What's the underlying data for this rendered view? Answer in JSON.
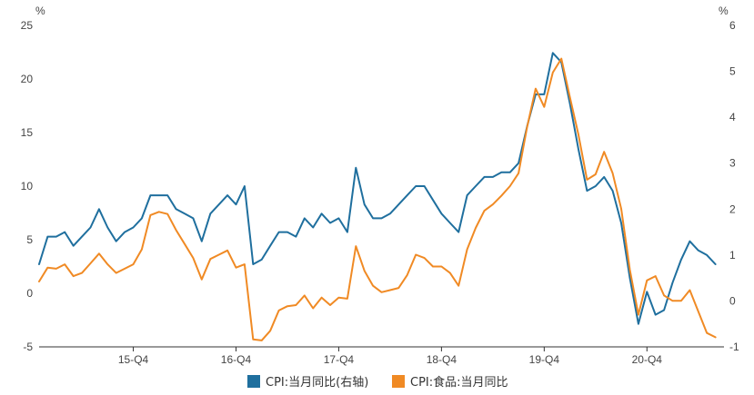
{
  "chart_data": {
    "type": "line",
    "xlabel": "",
    "y_unit_left": "%",
    "y_unit_right": "%",
    "ylim_left": [
      -5,
      25
    ],
    "ylim_right": [
      -1,
      6
    ],
    "yticks_left": [
      -5,
      0,
      5,
      10,
      15,
      20,
      25
    ],
    "yticks_right": [
      -1,
      0,
      1,
      2,
      3,
      4,
      5,
      6
    ],
    "x_start": "2015-01",
    "x_end": "2021-09",
    "x_ticks": [
      {
        "label": "15-Q4",
        "x": "2015-12"
      },
      {
        "label": "16-Q4",
        "x": "2016-12"
      },
      {
        "label": "17-Q4",
        "x": "2017-12"
      },
      {
        "label": "18-Q4",
        "x": "2018-12"
      },
      {
        "label": "19-Q4",
        "x": "2019-12"
      },
      {
        "label": "20-Q4",
        "x": "2020-12"
      }
    ],
    "legend_position": "bottom-center",
    "series": [
      {
        "name": "CPI:当月同比(右轴)",
        "axis": "right",
        "color": "#1f6f9e",
        "points": [
          [
            "2015-01",
            0.8
          ],
          [
            "2015-02",
            1.4
          ],
          [
            "2015-03",
            1.4
          ],
          [
            "2015-04",
            1.5
          ],
          [
            "2015-05",
            1.2
          ],
          [
            "2015-06",
            1.4
          ],
          [
            "2015-07",
            1.6
          ],
          [
            "2015-08",
            2.0
          ],
          [
            "2015-09",
            1.6
          ],
          [
            "2015-10",
            1.3
          ],
          [
            "2015-11",
            1.5
          ],
          [
            "2015-12",
            1.6
          ],
          [
            "2016-01",
            1.8
          ],
          [
            "2016-02",
            2.3
          ],
          [
            "2016-03",
            2.3
          ],
          [
            "2016-04",
            2.3
          ],
          [
            "2016-05",
            2.0
          ],
          [
            "2016-06",
            1.9
          ],
          [
            "2016-07",
            1.8
          ],
          [
            "2016-08",
            1.3
          ],
          [
            "2016-09",
            1.9
          ],
          [
            "2016-10",
            2.1
          ],
          [
            "2016-11",
            2.3
          ],
          [
            "2016-12",
            2.1
          ],
          [
            "2017-01",
            2.5
          ],
          [
            "2017-02",
            0.8
          ],
          [
            "2017-03",
            0.9
          ],
          [
            "2017-04",
            1.2
          ],
          [
            "2017-05",
            1.5
          ],
          [
            "2017-06",
            1.5
          ],
          [
            "2017-07",
            1.4
          ],
          [
            "2017-08",
            1.8
          ],
          [
            "2017-09",
            1.6
          ],
          [
            "2017-10",
            1.9
          ],
          [
            "2017-11",
            1.7
          ],
          [
            "2017-12",
            1.8
          ],
          [
            "2018-01",
            1.5
          ],
          [
            "2018-02",
            2.9
          ],
          [
            "2018-03",
            2.1
          ],
          [
            "2018-04",
            1.8
          ],
          [
            "2018-05",
            1.8
          ],
          [
            "2018-06",
            1.9
          ],
          [
            "2018-07",
            2.1
          ],
          [
            "2018-08",
            2.3
          ],
          [
            "2018-09",
            2.5
          ],
          [
            "2018-10",
            2.5
          ],
          [
            "2018-11",
            2.2
          ],
          [
            "2018-12",
            1.9
          ],
          [
            "2019-01",
            1.7
          ],
          [
            "2019-02",
            1.5
          ],
          [
            "2019-03",
            2.3
          ],
          [
            "2019-04",
            2.5
          ],
          [
            "2019-05",
            2.7
          ],
          [
            "2019-06",
            2.7
          ],
          [
            "2019-07",
            2.8
          ],
          [
            "2019-08",
            2.8
          ],
          [
            "2019-09",
            3.0
          ],
          [
            "2019-10",
            3.8
          ],
          [
            "2019-11",
            4.5
          ],
          [
            "2019-12",
            4.5
          ],
          [
            "2020-01",
            5.4
          ],
          [
            "2020-02",
            5.2
          ],
          [
            "2020-03",
            4.3
          ],
          [
            "2020-04",
            3.3
          ],
          [
            "2020-05",
            2.4
          ],
          [
            "2020-06",
            2.5
          ],
          [
            "2020-07",
            2.7
          ],
          [
            "2020-08",
            2.4
          ],
          [
            "2020-09",
            1.7
          ],
          [
            "2020-10",
            0.5
          ],
          [
            "2020-11",
            -0.5
          ],
          [
            "2020-12",
            0.2
          ],
          [
            "2021-01",
            -0.3
          ],
          [
            "2021-02",
            -0.2
          ],
          [
            "2021-03",
            0.4
          ],
          [
            "2021-04",
            0.9
          ],
          [
            "2021-05",
            1.3
          ],
          [
            "2021-06",
            1.1
          ],
          [
            "2021-07",
            1.0
          ],
          [
            "2021-08",
            0.8
          ]
        ]
      },
      {
        "name": "CPI:食品:当月同比",
        "axis": "left",
        "color": "#f08a24",
        "points": [
          [
            "2015-01",
            1.1
          ],
          [
            "2015-02",
            2.4
          ],
          [
            "2015-03",
            2.3
          ],
          [
            "2015-04",
            2.7
          ],
          [
            "2015-05",
            1.6
          ],
          [
            "2015-06",
            1.9
          ],
          [
            "2015-07",
            2.8
          ],
          [
            "2015-08",
            3.7
          ],
          [
            "2015-09",
            2.7
          ],
          [
            "2015-10",
            1.9
          ],
          [
            "2015-11",
            2.3
          ],
          [
            "2015-12",
            2.7
          ],
          [
            "2016-01",
            4.1
          ],
          [
            "2016-02",
            7.3
          ],
          [
            "2016-03",
            7.6
          ],
          [
            "2016-04",
            7.4
          ],
          [
            "2016-05",
            5.9
          ],
          [
            "2016-06",
            4.6
          ],
          [
            "2016-07",
            3.3
          ],
          [
            "2016-08",
            1.3
          ],
          [
            "2016-09",
            3.2
          ],
          [
            "2016-10",
            3.6
          ],
          [
            "2016-11",
            4.0
          ],
          [
            "2016-12",
            2.4
          ],
          [
            "2017-01",
            2.7
          ],
          [
            "2017-02",
            -4.3
          ],
          [
            "2017-03",
            -4.4
          ],
          [
            "2017-04",
            -3.5
          ],
          [
            "2017-05",
            -1.6
          ],
          [
            "2017-06",
            -1.2
          ],
          [
            "2017-07",
            -1.1
          ],
          [
            "2017-08",
            -0.2
          ],
          [
            "2017-09",
            -1.4
          ],
          [
            "2017-10",
            -0.4
          ],
          [
            "2017-11",
            -1.1
          ],
          [
            "2017-12",
            -0.4
          ],
          [
            "2018-01",
            -0.5
          ],
          [
            "2018-02",
            4.4
          ],
          [
            "2018-03",
            2.1
          ],
          [
            "2018-04",
            0.7
          ],
          [
            "2018-05",
            0.1
          ],
          [
            "2018-06",
            0.3
          ],
          [
            "2018-07",
            0.5
          ],
          [
            "2018-08",
            1.7
          ],
          [
            "2018-09",
            3.6
          ],
          [
            "2018-10",
            3.3
          ],
          [
            "2018-11",
            2.5
          ],
          [
            "2018-12",
            2.5
          ],
          [
            "2019-01",
            1.9
          ],
          [
            "2019-02",
            0.7
          ],
          [
            "2019-03",
            4.1
          ],
          [
            "2019-04",
            6.1
          ],
          [
            "2019-05",
            7.7
          ],
          [
            "2019-06",
            8.3
          ],
          [
            "2019-07",
            9.1
          ],
          [
            "2019-08",
            10.0
          ],
          [
            "2019-09",
            11.2
          ],
          [
            "2019-10",
            15.5
          ],
          [
            "2019-11",
            19.1
          ],
          [
            "2019-12",
            17.4
          ],
          [
            "2020-01",
            20.6
          ],
          [
            "2020-02",
            21.9
          ],
          [
            "2020-03",
            18.3
          ],
          [
            "2020-04",
            14.8
          ],
          [
            "2020-05",
            10.6
          ],
          [
            "2020-06",
            11.1
          ],
          [
            "2020-07",
            13.2
          ],
          [
            "2020-08",
            11.2
          ],
          [
            "2020-09",
            7.9
          ],
          [
            "2020-10",
            2.2
          ],
          [
            "2020-11",
            -2.0
          ],
          [
            "2020-12",
            1.2
          ],
          [
            "2021-01",
            1.6
          ],
          [
            "2021-02",
            -0.2
          ],
          [
            "2021-03",
            -0.7
          ],
          [
            "2021-04",
            -0.7
          ],
          [
            "2021-05",
            0.3
          ],
          [
            "2021-06",
            -1.7
          ],
          [
            "2021-07",
            -3.7
          ],
          [
            "2021-08",
            -4.1
          ]
        ]
      }
    ]
  }
}
